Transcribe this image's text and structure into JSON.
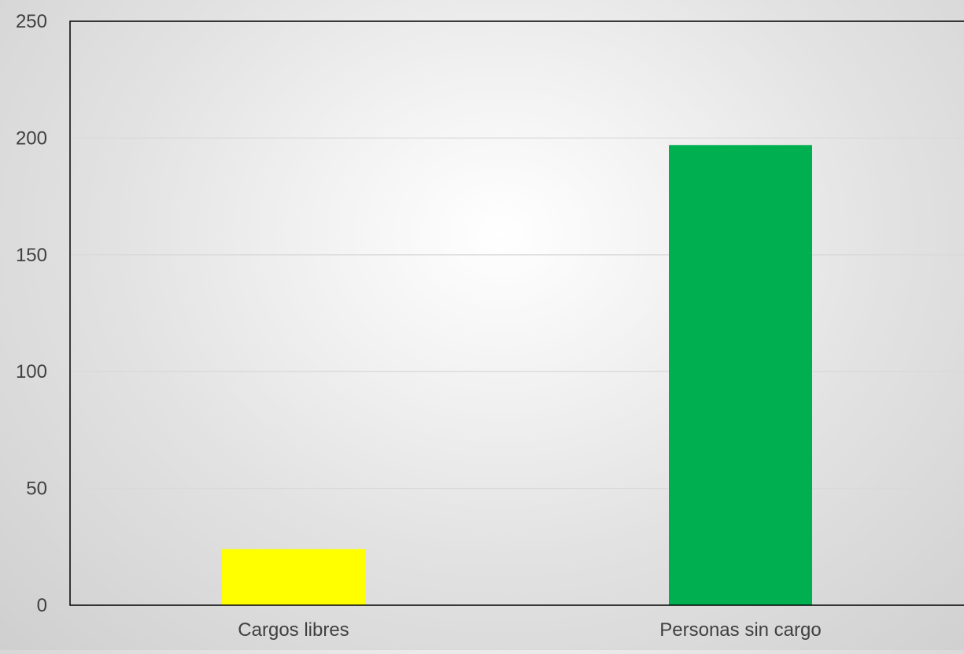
{
  "chart_data": {
    "type": "bar",
    "categories": [
      "Cargos libres",
      "Personas sin cargo"
    ],
    "values": [
      24,
      197
    ],
    "colors": [
      "#ffff00",
      "#00b050"
    ],
    "ylim": [
      0,
      250
    ],
    "yticks": [
      0,
      50,
      100,
      150,
      200,
      250
    ],
    "title": "",
    "xlabel": "",
    "ylabel": "",
    "grid": true,
    "legend": "none"
  }
}
